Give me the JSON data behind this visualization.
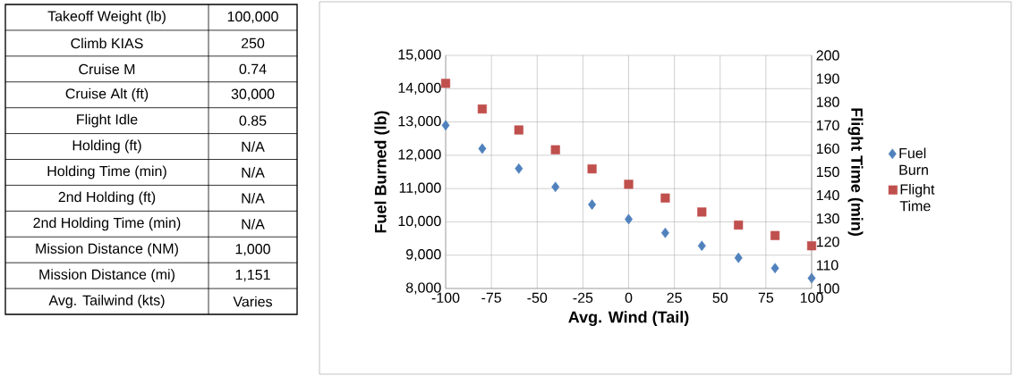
{
  "chart_data": [
    {
      "type": "other",
      "annotations": [
        "Takeoff Weight (lb)",
        "100,000",
        "Climb KIAS",
        "250",
        "Cruise M",
        "0.74",
        "Cruise Alt (ft)",
        "30,000",
        "Flight Idle",
        "0.85",
        "Holding (ft)",
        "N/A",
        "Holding Time (min)",
        "N/A",
        "2nd Holding (ft)",
        "N/A",
        "2nd Holding Time (min)",
        "N/A",
        "Mission Distance (NM)",
        "1,000",
        "Mission Distance (mi)",
        "1,151",
        "Avg. Tailwind (kts)",
        "Varies"
      ]
    },
    {
      "type": "scatter",
      "xlabel": "Avg. Wind (Tail)",
      "ylabel": "Fuel Burned (lb)",
      "y2label": "Flight Time (min)",
      "x": [
        -100,
        -80,
        -60,
        -40,
        -20,
        0,
        20,
        40,
        60,
        80,
        100
      ],
      "series": [
        {
          "name": "Fuel Burn",
          "color": "#4f81bd",
          "marker": "diamond",
          "values": [
            12900,
            12200,
            11600,
            11050,
            10520,
            10080,
            9670,
            9280,
            8920,
            8610,
            8310
          ]
        },
        {
          "name": "Flight Time",
          "color": "#c0504d",
          "marker": "square",
          "axis": "y2",
          "values": [
            188,
            177,
            168,
            159.5,
            151.3,
            144.7,
            138.8,
            132.8,
            127.2,
            122.7,
            118.3
          ]
        }
      ],
      "xlim": [
        -100,
        100
      ],
      "xticks": [
        -100,
        -75,
        -50,
        -25,
        0,
        25,
        50,
        75,
        100
      ],
      "ylim": [
        8000,
        15000
      ],
      "yticks": [
        {
          "value": 8000,
          "label": "8,000"
        },
        {
          "value": 9000,
          "label": "9,000"
        },
        {
          "value": 10000,
          "label": "10,000"
        },
        {
          "value": 11000,
          "label": "11,000"
        },
        {
          "value": 12000,
          "label": "12,000"
        },
        {
          "value": 13000,
          "label": "13,000"
        },
        {
          "value": 14000,
          "label": "14,000"
        },
        {
          "value": 15000,
          "label": "15,000"
        }
      ],
      "y2lim": [
        100,
        200
      ],
      "y2ticks": [
        100,
        110,
        120,
        130,
        140,
        150,
        160,
        170,
        180,
        190,
        200
      ],
      "grid": true,
      "legend": "right"
    }
  ]
}
